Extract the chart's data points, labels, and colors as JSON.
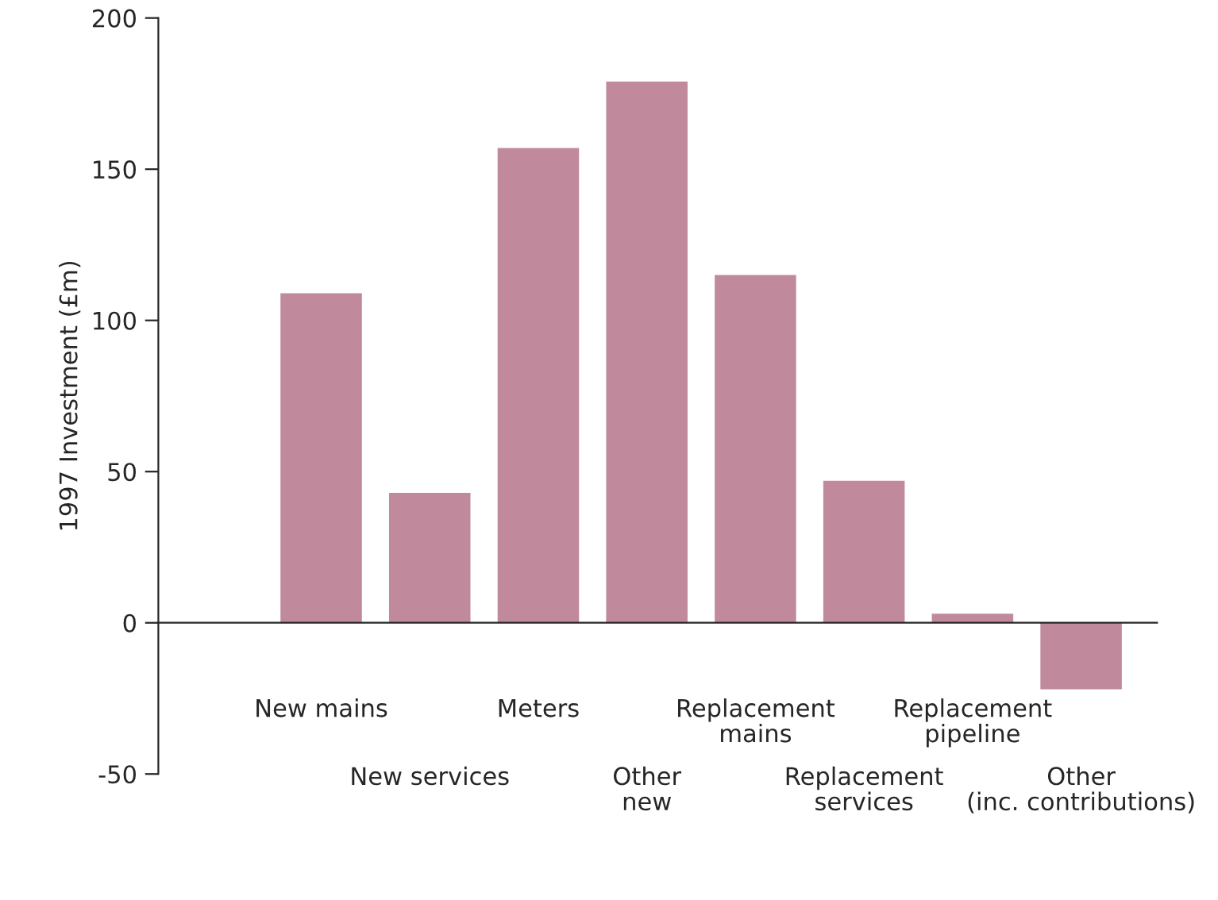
{
  "chart_data": {
    "type": "bar",
    "ylabel": "1997 Investment (£m)",
    "categories": [
      "New mains",
      "New services",
      "Meters",
      "Other\nnew",
      "Replacement\nmains",
      "Replacement\nservices",
      "Replacement\npipeline",
      "Other\n(inc. contributions)"
    ],
    "values": [
      109,
      43,
      157,
      179,
      115,
      47,
      3,
      -22
    ],
    "color": "#c08a9c",
    "ylim": [
      -50,
      200
    ],
    "yticks": [
      -50,
      0,
      50,
      100,
      150,
      200
    ]
  }
}
